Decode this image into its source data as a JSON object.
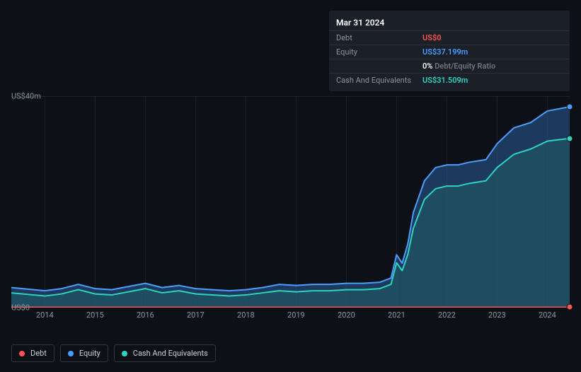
{
  "tooltip": {
    "date": "Mar 31 2024",
    "rows": [
      {
        "label": "Debt",
        "value": "US$0",
        "color": "v-red"
      },
      {
        "label": "Equity",
        "value": "US$37.199m",
        "color": "v-blue"
      },
      {
        "label": "",
        "value_prefix": "0%",
        "value_suffix": " Debt/Equity Ratio",
        "color": "v-white",
        "suffix_color": "v-grey"
      },
      {
        "label": "Cash And Equivalents",
        "value": "US$31.509m",
        "color": "v-teal"
      }
    ]
  },
  "chart": {
    "type": "area",
    "y_axis": {
      "min": 0,
      "max": 40,
      "labels": [
        {
          "value": 40,
          "text": "US$40m"
        },
        {
          "value": 0,
          "text": "US$0"
        }
      ]
    },
    "x_axis": {
      "labels": [
        "2014",
        "2015",
        "2016",
        "2017",
        "2018",
        "2019",
        "2020",
        "2021",
        "2022",
        "2023",
        "2024"
      ],
      "positions_pct": [
        6,
        15,
        24,
        33,
        42,
        51,
        60,
        69,
        78,
        87,
        96
      ]
    },
    "colors": {
      "bg": "#0d1117",
      "grid": "#1a1f28",
      "debt_line": "#ff5252",
      "debt_fill": "rgba(255,82,82,0.15)",
      "equity_line": "#4a9eff",
      "equity_fill": "rgba(48,98,165,0.5)",
      "cash_line": "#2dd4bf",
      "cash_fill": "rgba(30,95,100,0.5)",
      "marker_stroke": "#0d1117"
    },
    "series": {
      "x_pct": [
        0,
        3,
        6,
        9,
        12,
        15,
        18,
        21,
        24,
        27,
        30,
        33,
        36,
        39,
        42,
        45,
        48,
        51,
        54,
        57,
        60,
        63,
        66,
        68,
        69,
        70,
        71,
        72,
        74,
        76,
        78,
        80,
        82,
        85,
        87,
        90,
        93,
        96,
        100
      ],
      "debt": [
        0.1,
        0.1,
        0.1,
        0.1,
        0.1,
        0.1,
        0.1,
        0.1,
        0.1,
        0.1,
        0.1,
        0.1,
        0.1,
        0.1,
        0.1,
        0.1,
        0.1,
        0.1,
        0.1,
        0.1,
        0.1,
        0.1,
        0.1,
        0.1,
        0.1,
        0.1,
        0.1,
        0.1,
        0.1,
        0.1,
        0.1,
        0.1,
        0.1,
        0.1,
        0.1,
        0.1,
        0.1,
        0.1,
        0.1
      ],
      "equity": [
        3.8,
        3.5,
        3.2,
        3.6,
        4.4,
        3.6,
        3.4,
        4.0,
        4.6,
        3.8,
        4.2,
        3.6,
        3.4,
        3.2,
        3.4,
        3.8,
        4.4,
        4.2,
        4.4,
        4.4,
        4.6,
        4.6,
        4.8,
        5.6,
        10,
        8.4,
        12,
        18,
        24,
        26.5,
        27,
        27,
        27.5,
        28,
        31,
        34,
        35,
        37.2,
        38
      ],
      "cash": [
        2.8,
        2.5,
        2.2,
        2.6,
        3.4,
        2.6,
        2.4,
        3.0,
        3.6,
        2.8,
        3.2,
        2.6,
        2.4,
        2.2,
        2.4,
        2.8,
        3.2,
        3.0,
        3.2,
        3.2,
        3.4,
        3.4,
        3.6,
        4.4,
        8.5,
        7.0,
        10,
        15,
        20.5,
        22.5,
        23,
        23,
        23.5,
        24,
        26.5,
        29,
        30,
        31.5,
        32
      ]
    },
    "end_markers": [
      {
        "series": "equity",
        "color": "#4a9eff",
        "y": 38
      },
      {
        "series": "cash",
        "color": "#2dd4bf",
        "y": 32
      },
      {
        "series": "debt",
        "color": "#ff5252",
        "y": 0.1
      }
    ]
  },
  "legend": [
    {
      "label": "Debt",
      "color": "#ff5252"
    },
    {
      "label": "Equity",
      "color": "#4a9eff"
    },
    {
      "label": "Cash And Equivalents",
      "color": "#2dd4bf"
    }
  ]
}
